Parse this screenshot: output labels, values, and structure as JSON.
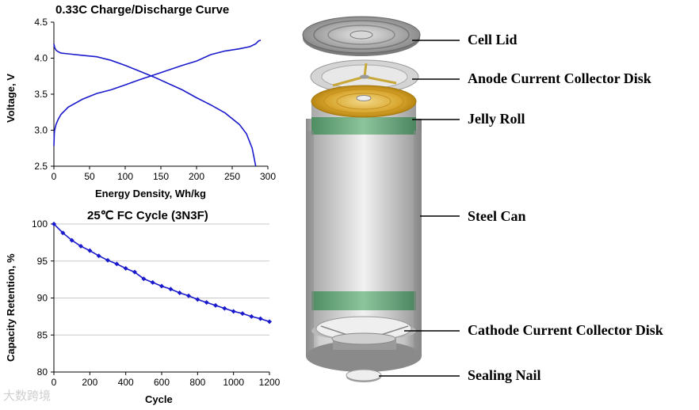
{
  "chart_data": [
    {
      "type": "line",
      "title": "0.33C Charge/Discharge Curve",
      "xlabel": "Energy Density, Wh/kg",
      "ylabel": "Voltage, V",
      "xlim": [
        0,
        300
      ],
      "ylim": [
        2.5,
        4.5
      ],
      "xticks": [
        0,
        50,
        100,
        150,
        200,
        250,
        300
      ],
      "yticks": [
        2.5,
        3.0,
        3.5,
        4.0,
        4.5
      ],
      "grid": false,
      "color": "#1a1acc",
      "series": [
        {
          "x": [
            0,
            0.5,
            1,
            3,
            6,
            10,
            20,
            40,
            60,
            80,
            100,
            120,
            150,
            180,
            200,
            220,
            240,
            260,
            275,
            283,
            287,
            290
          ],
          "y": [
            2.78,
            2.95,
            3.0,
            3.08,
            3.15,
            3.22,
            3.32,
            3.43,
            3.51,
            3.56,
            3.63,
            3.7,
            3.8,
            3.9,
            3.96,
            4.05,
            4.1,
            4.13,
            4.16,
            4.2,
            4.24,
            4.25
          ]
        },
        {
          "x": [
            0,
            1,
            3,
            6,
            10,
            20,
            40,
            60,
            80,
            100,
            120,
            140,
            160,
            180,
            200,
            220,
            240,
            260,
            270,
            278,
            283
          ],
          "y": [
            4.2,
            4.15,
            4.11,
            4.09,
            4.07,
            4.06,
            4.04,
            4.02,
            3.97,
            3.9,
            3.82,
            3.74,
            3.65,
            3.56,
            3.45,
            3.35,
            3.24,
            3.08,
            2.95,
            2.75,
            2.5
          ]
        }
      ]
    },
    {
      "type": "line",
      "title": "25℃ FC Cycle (3N3F)",
      "xlabel": "Cycle",
      "ylabel": "Capacity Retention, %",
      "xlim": [
        0,
        1200
      ],
      "ylim": [
        80,
        100
      ],
      "xticks": [
        0,
        200,
        400,
        600,
        800,
        1000,
        1200
      ],
      "yticks": [
        80,
        85,
        90,
        95,
        100
      ],
      "grid": true,
      "color": "#1a1acc",
      "series": [
        {
          "x": [
            0,
            50,
            100,
            150,
            200,
            250,
            300,
            350,
            400,
            450,
            500,
            550,
            600,
            650,
            700,
            750,
            800,
            850,
            900,
            950,
            1000,
            1050,
            1100,
            1150,
            1200
          ],
          "y": [
            100,
            98.8,
            97.8,
            97.0,
            96.4,
            95.7,
            95.1,
            94.6,
            94.0,
            93.5,
            92.6,
            92.1,
            91.6,
            91.2,
            90.7,
            90.3,
            89.8,
            89.4,
            89.0,
            88.6,
            88.2,
            87.9,
            87.5,
            87.2,
            86.8
          ]
        }
      ]
    }
  ],
  "diagram": {
    "labels": [
      "Cell Lid",
      "Anode Current Collector Disk",
      "Jelly Roll",
      "Steel Can",
      "Cathode Current Collector Disk",
      "Sealing Nail"
    ]
  },
  "watermark": "大数跨境"
}
